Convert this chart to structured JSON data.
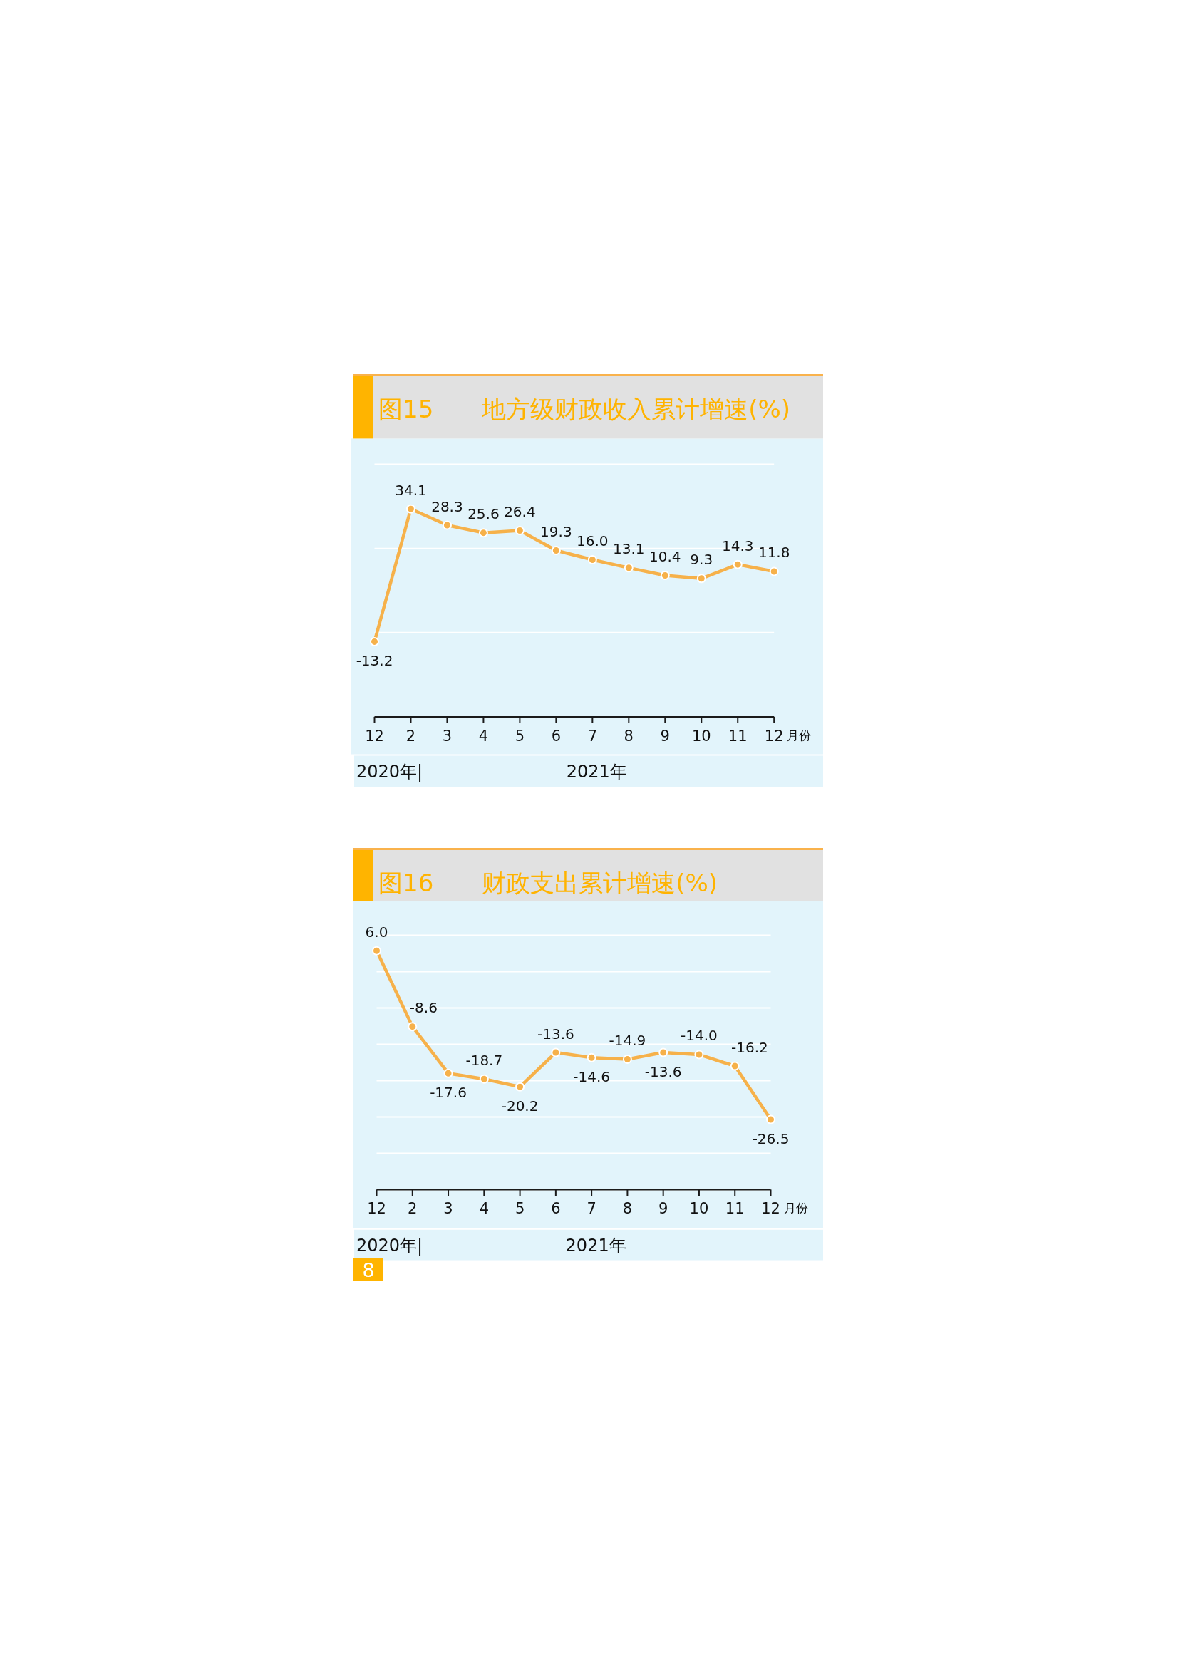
{
  "chart_data": [
    {
      "type": "line",
      "title": "图15　　地方级财政收入累计增速(%)",
      "xlabel": "月份",
      "categories": [
        "12",
        "2",
        "3",
        "4",
        "5",
        "6",
        "7",
        "8",
        "9",
        "10",
        "11",
        "12"
      ],
      "series": [
        {
          "color": "#f6b14a",
          "values": [
            -13.2,
            34.1,
            28.3,
            25.6,
            26.4,
            19.3,
            16.0,
            13.1,
            10.4,
            9.3,
            14.3,
            11.8
          ],
          "value_labels": [
            "-13.2",
            "34.1",
            "28.3",
            "25.6",
            "26.4",
            "19.3",
            "16.0",
            "13.1",
            "10.4",
            "9.3",
            "14.3",
            "11.8"
          ]
        }
      ],
      "ylim": [
        -40,
        50
      ],
      "yticks": [
        {
          "value": -40,
          "label": null
        },
        {
          "value": -10,
          "label": null
        },
        {
          "value": 20,
          "label": null
        },
        {
          "value": 50,
          "label": null
        }
      ],
      "grid": "y",
      "tick_labels": "x",
      "marker": "circle",
      "line_style": "solid",
      "annotations": [
        "2020年|",
        "2021年"
      ]
    },
    {
      "type": "line",
      "title": "图16　　财政支出累计增速(%)",
      "xlabel": "月份",
      "categories": [
        "12",
        "2",
        "3",
        "4",
        "5",
        "6",
        "7",
        "8",
        "9",
        "10",
        "11",
        "12"
      ],
      "series": [
        {
          "color": "#f6b14a",
          "values": [
            6.0,
            -8.6,
            -17.6,
            -18.7,
            -20.2,
            -13.6,
            -14.6,
            -14.9,
            -13.6,
            -14.0,
            -16.2,
            -26.5
          ],
          "value_labels": [
            "6.0",
            "-8.6",
            "-17.6",
            "-18.7",
            "-20.2",
            "-13.6",
            "-14.6",
            "-14.9",
            "-13.6",
            "-14.0",
            "-16.2",
            "-26.5"
          ]
        }
      ],
      "ylim": [
        -40,
        9
      ],
      "yticks": [
        {
          "value": -40,
          "label": null
        },
        {
          "value": -33,
          "label": null
        },
        {
          "value": -26,
          "label": null
        },
        {
          "value": -19,
          "label": null
        },
        {
          "value": -12,
          "label": null
        },
        {
          "value": -5,
          "label": null
        },
        {
          "value": 2,
          "label": null
        },
        {
          "value": 9,
          "label": null
        }
      ],
      "grid": "y",
      "tick_labels": "x",
      "marker": "circle",
      "line_style": "solid",
      "annotations": [
        "2020年|",
        "2021年",
        "8"
      ]
    }
  ]
}
